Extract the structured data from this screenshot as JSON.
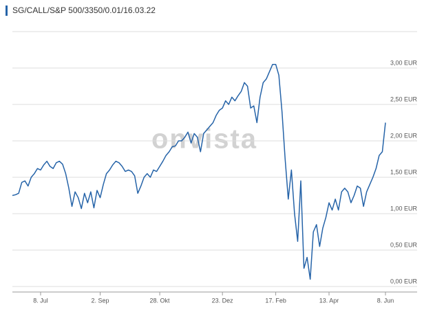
{
  "chart_data": {
    "type": "line",
    "title": "SG/CALL/S&P 500/3350/0.01/16.03.22",
    "watermark": "onvista",
    "color": "#2563a8",
    "grid": true,
    "values": [
      1.25,
      1.26,
      1.28,
      1.43,
      1.45,
      1.38,
      1.5,
      1.55,
      1.62,
      1.6,
      1.67,
      1.72,
      1.65,
      1.62,
      1.7,
      1.72,
      1.68,
      1.55,
      1.35,
      1.1,
      1.3,
      1.22,
      1.07,
      1.28,
      1.15,
      1.3,
      1.08,
      1.32,
      1.22,
      1.4,
      1.55,
      1.6,
      1.67,
      1.72,
      1.7,
      1.65,
      1.58,
      1.6,
      1.58,
      1.52,
      1.28,
      1.38,
      1.5,
      1.55,
      1.5,
      1.6,
      1.58,
      1.65,
      1.72,
      1.8,
      1.85,
      1.92,
      1.93,
      2.0,
      2.0,
      2.05,
      2.12,
      1.97,
      2.1,
      2.05,
      1.85,
      2.1,
      2.15,
      2.2,
      2.25,
      2.35,
      2.42,
      2.45,
      2.55,
      2.5,
      2.6,
      2.55,
      2.62,
      2.68,
      2.8,
      2.75,
      2.45,
      2.48,
      2.25,
      2.6,
      2.8,
      2.85,
      2.95,
      3.05,
      3.05,
      2.9,
      2.4,
      1.75,
      1.2,
      1.6,
      1.0,
      0.62,
      1.45,
      0.25,
      0.4,
      0.1,
      0.75,
      0.85,
      0.55,
      0.8,
      0.95,
      1.15,
      1.05,
      1.2,
      1.05,
      1.3,
      1.35,
      1.3,
      1.15,
      1.25,
      1.38,
      1.35,
      1.1,
      1.3,
      1.4,
      1.5,
      1.62,
      1.8,
      1.85,
      2.25
    ],
    "xlim": [
      0,
      119
    ],
    "xticks": [
      {
        "value": 9,
        "label": "8. Jul"
      },
      {
        "value": 28,
        "label": "2. Sep"
      },
      {
        "value": 47,
        "label": "28. Okt"
      },
      {
        "value": 67,
        "label": "23. Dez"
      },
      {
        "value": 84,
        "label": "17. Feb"
      },
      {
        "value": 101,
        "label": "13. Apr"
      },
      {
        "value": 119,
        "label": "8. Jun"
      }
    ],
    "ylim": [
      0,
      3.5
    ],
    "yticks": [
      {
        "value": 0,
        "label": "0,00 EUR"
      },
      {
        "value": 0.5,
        "label": "0,50 EUR"
      },
      {
        "value": 1,
        "label": "1,00 EUR"
      },
      {
        "value": 1.5,
        "label": "1,50 EUR"
      },
      {
        "value": 2,
        "label": "2,00 EUR"
      },
      {
        "value": 2.5,
        "label": "2,50 EUR"
      },
      {
        "value": 3,
        "label": "3,00 EUR"
      }
    ]
  }
}
